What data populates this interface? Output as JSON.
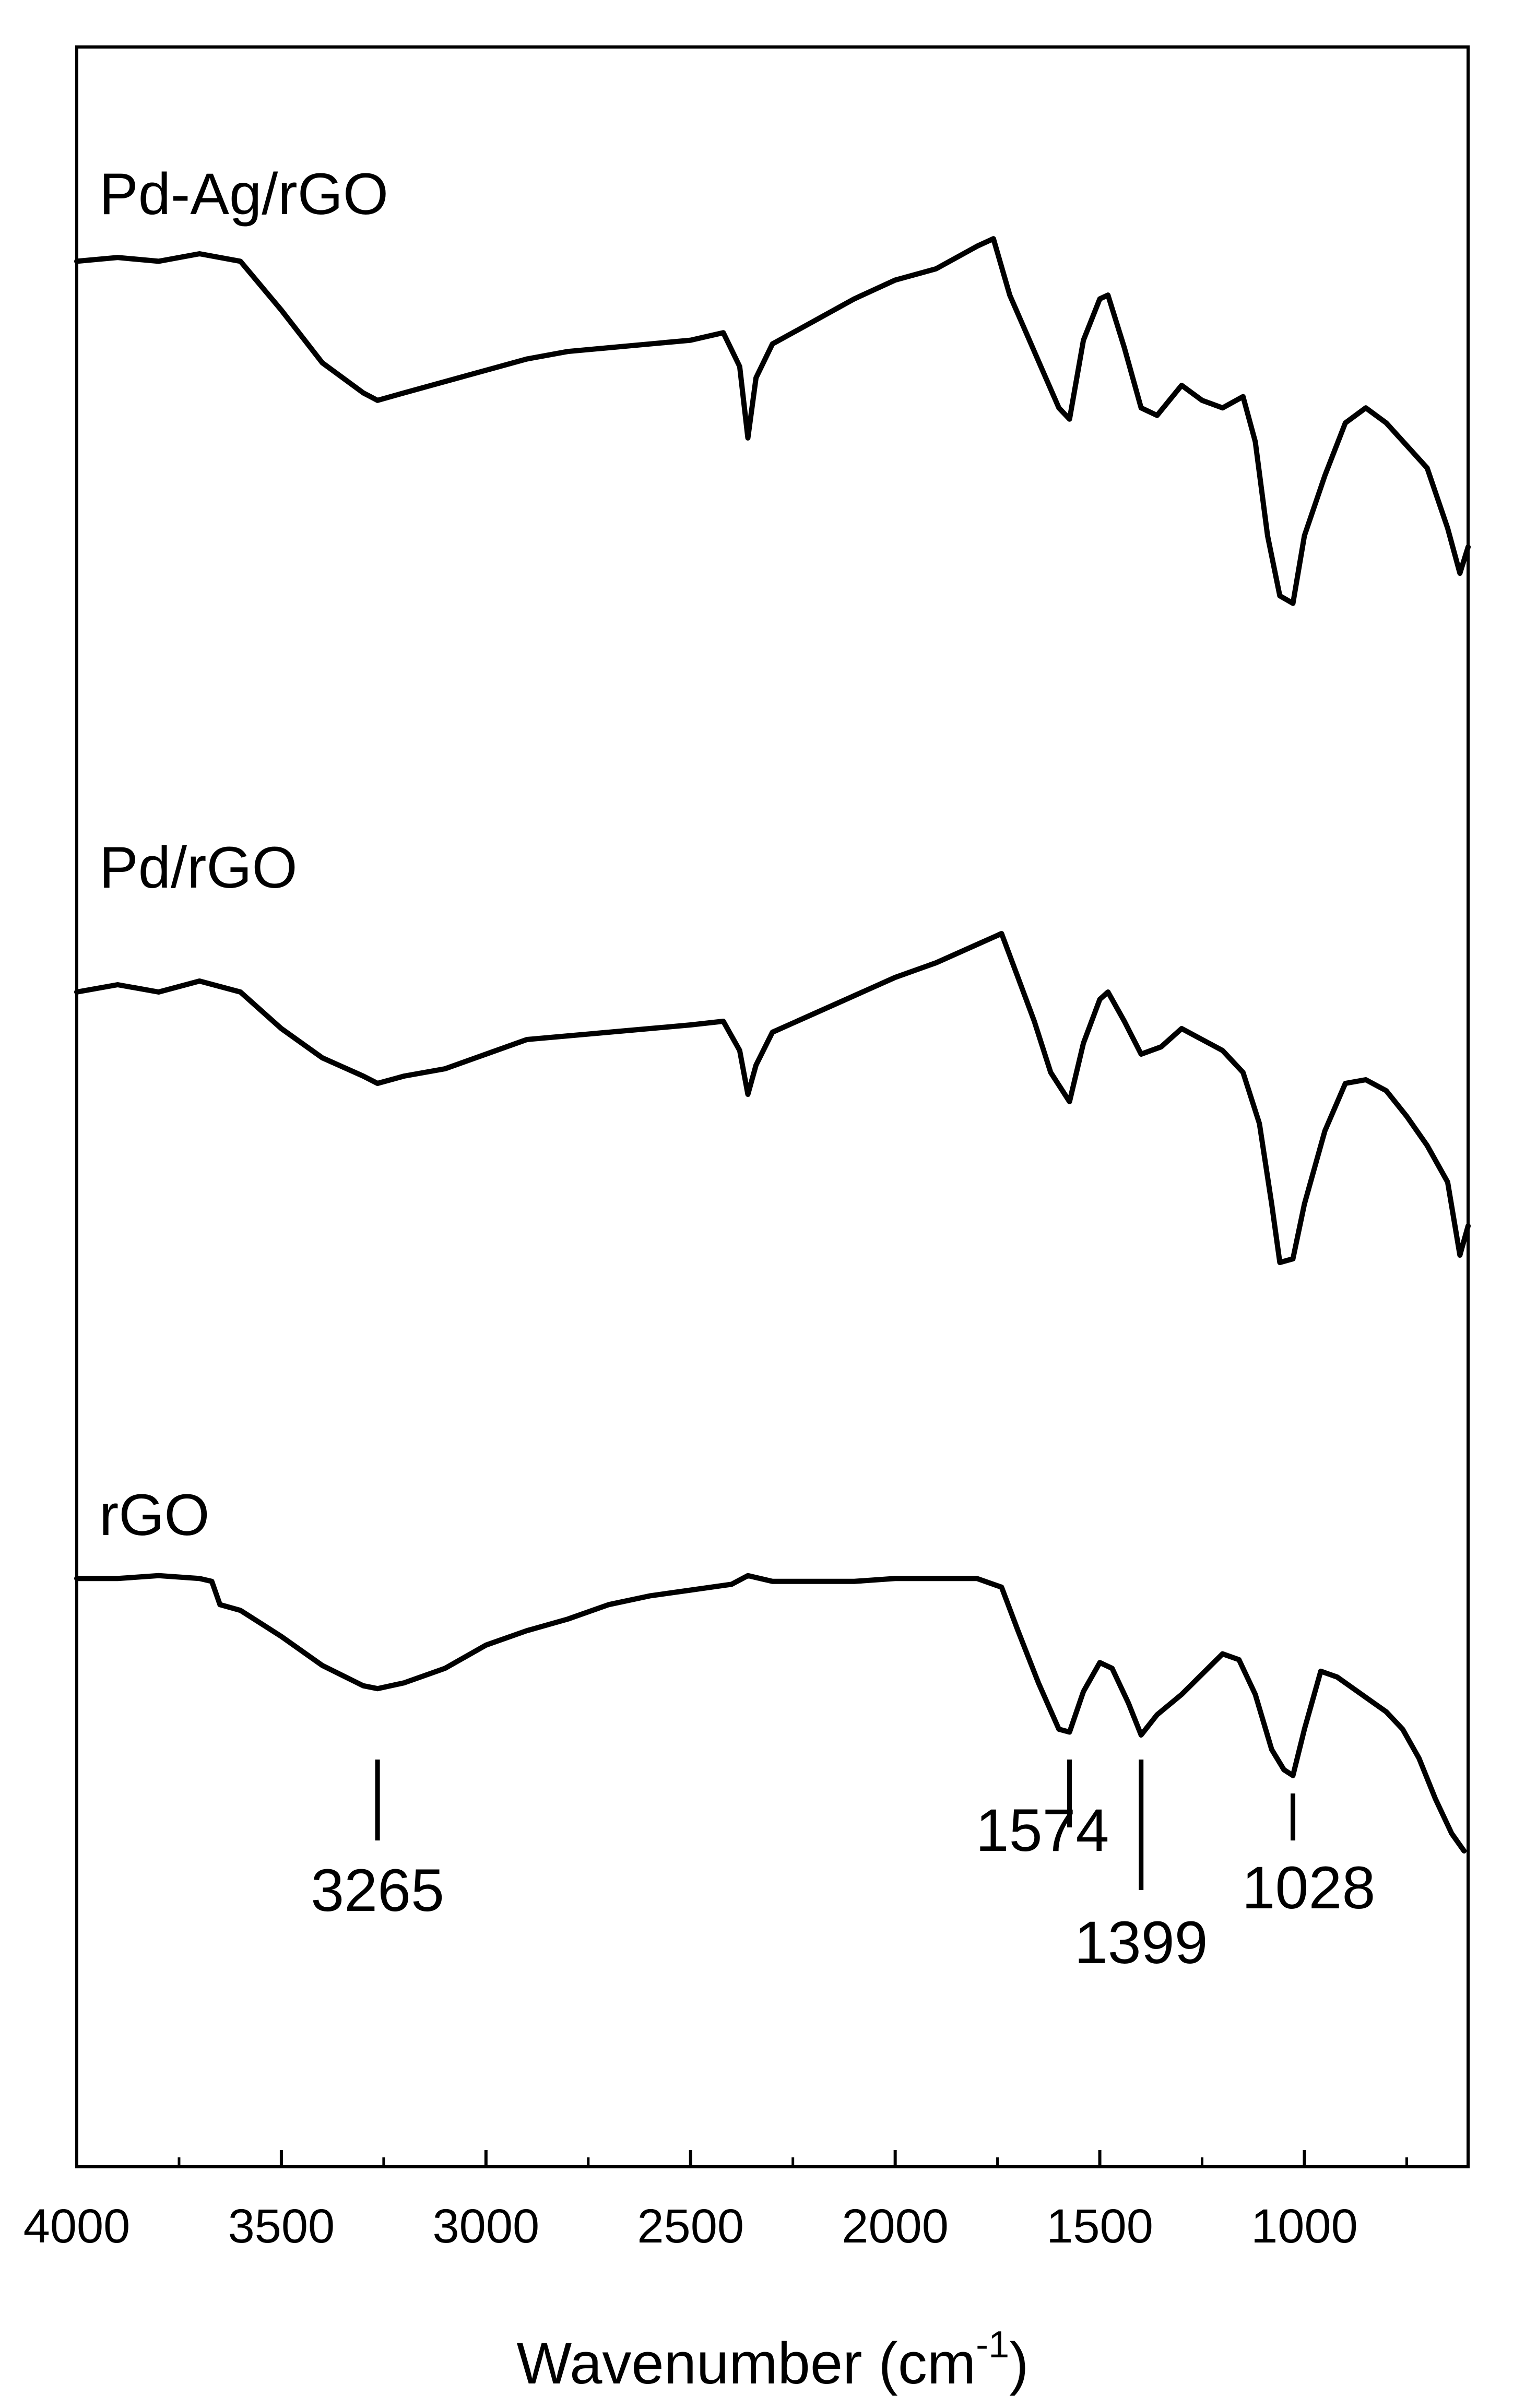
{
  "chart_data": {
    "type": "line",
    "xlabel": "Wavenumber (cm",
    "xlabel_sup": "-1",
    "xlabel_end": ")",
    "ylabel": "",
    "xlim": [
      4000,
      600
    ],
    "x_reversed": true,
    "y_axis_ticks_visible": false,
    "grid": false,
    "x_ticks": [
      4000,
      3500,
      3000,
      2500,
      2000,
      1500,
      1000
    ],
    "x_tick_labels": [
      "4000",
      "3500",
      "3000",
      "2500",
      "2000",
      "1500",
      "1000"
    ],
    "series": [
      {
        "name": "Pd-Ag/rGO",
        "points": [
          [
            4000,
            0.93
          ],
          [
            3900,
            0.94
          ],
          [
            3800,
            0.93
          ],
          [
            3700,
            0.95
          ],
          [
            3600,
            0.93
          ],
          [
            3500,
            0.8
          ],
          [
            3400,
            0.66
          ],
          [
            3300,
            0.58
          ],
          [
            3265,
            0.56
          ],
          [
            3200,
            0.58
          ],
          [
            3100,
            0.61
          ],
          [
            3000,
            0.64
          ],
          [
            2900,
            0.67
          ],
          [
            2800,
            0.69
          ],
          [
            2700,
            0.7
          ],
          [
            2600,
            0.71
          ],
          [
            2500,
            0.72
          ],
          [
            2420,
            0.74
          ],
          [
            2380,
            0.65
          ],
          [
            2360,
            0.46
          ],
          [
            2340,
            0.62
          ],
          [
            2300,
            0.71
          ],
          [
            2200,
            0.77
          ],
          [
            2100,
            0.83
          ],
          [
            2000,
            0.88
          ],
          [
            1900,
            0.91
          ],
          [
            1800,
            0.97
          ],
          [
            1760,
            0.99
          ],
          [
            1720,
            0.84
          ],
          [
            1680,
            0.74
          ],
          [
            1640,
            0.64
          ],
          [
            1600,
            0.54
          ],
          [
            1574,
            0.51
          ],
          [
            1540,
            0.72
          ],
          [
            1500,
            0.83
          ],
          [
            1480,
            0.84
          ],
          [
            1440,
            0.7
          ],
          [
            1399,
            0.54
          ],
          [
            1360,
            0.52
          ],
          [
            1300,
            0.6
          ],
          [
            1250,
            0.56
          ],
          [
            1200,
            0.54
          ],
          [
            1150,
            0.57
          ],
          [
            1120,
            0.45
          ],
          [
            1090,
            0.2
          ],
          [
            1060,
            0.04
          ],
          [
            1028,
            0.02
          ],
          [
            1000,
            0.2
          ],
          [
            950,
            0.36
          ],
          [
            900,
            0.5
          ],
          [
            850,
            0.54
          ],
          [
            800,
            0.5
          ],
          [
            750,
            0.44
          ],
          [
            700,
            0.38
          ],
          [
            650,
            0.22
          ],
          [
            620,
            0.1
          ],
          [
            600,
            0.17
          ]
        ],
        "label": "Pd-Ag/rGO"
      },
      {
        "name": "Pd/rGO",
        "points": [
          [
            4000,
            0.8
          ],
          [
            3900,
            0.82
          ],
          [
            3800,
            0.8
          ],
          [
            3700,
            0.83
          ],
          [
            3600,
            0.8
          ],
          [
            3500,
            0.7
          ],
          [
            3400,
            0.62
          ],
          [
            3300,
            0.57
          ],
          [
            3265,
            0.55
          ],
          [
            3200,
            0.57
          ],
          [
            3100,
            0.59
          ],
          [
            3000,
            0.63
          ],
          [
            2900,
            0.67
          ],
          [
            2800,
            0.68
          ],
          [
            2700,
            0.69
          ],
          [
            2600,
            0.7
          ],
          [
            2500,
            0.71
          ],
          [
            2420,
            0.72
          ],
          [
            2380,
            0.64
          ],
          [
            2360,
            0.52
          ],
          [
            2340,
            0.6
          ],
          [
            2300,
            0.69
          ],
          [
            2200,
            0.74
          ],
          [
            2100,
            0.79
          ],
          [
            2000,
            0.84
          ],
          [
            1900,
            0.88
          ],
          [
            1800,
            0.93
          ],
          [
            1740,
            0.96
          ],
          [
            1700,
            0.84
          ],
          [
            1660,
            0.72
          ],
          [
            1620,
            0.58
          ],
          [
            1574,
            0.5
          ],
          [
            1540,
            0.66
          ],
          [
            1500,
            0.78
          ],
          [
            1480,
            0.8
          ],
          [
            1440,
            0.72
          ],
          [
            1399,
            0.63
          ],
          [
            1350,
            0.65
          ],
          [
            1300,
            0.7
          ],
          [
            1250,
            0.67
          ],
          [
            1200,
            0.64
          ],
          [
            1150,
            0.58
          ],
          [
            1110,
            0.44
          ],
          [
            1080,
            0.22
          ],
          [
            1060,
            0.06
          ],
          [
            1028,
            0.07
          ],
          [
            1000,
            0.22
          ],
          [
            950,
            0.42
          ],
          [
            900,
            0.55
          ],
          [
            850,
            0.56
          ],
          [
            800,
            0.53
          ],
          [
            750,
            0.46
          ],
          [
            700,
            0.38
          ],
          [
            650,
            0.28
          ],
          [
            620,
            0.08
          ],
          [
            600,
            0.16
          ]
        ],
        "label": "Pd/rGO"
      },
      {
        "name": "rGO",
        "points": [
          [
            4000,
            0.94
          ],
          [
            3900,
            0.94
          ],
          [
            3800,
            0.95
          ],
          [
            3700,
            0.94
          ],
          [
            3670,
            0.93
          ],
          [
            3650,
            0.85
          ],
          [
            3600,
            0.83
          ],
          [
            3500,
            0.74
          ],
          [
            3400,
            0.64
          ],
          [
            3300,
            0.57
          ],
          [
            3265,
            0.56
          ],
          [
            3200,
            0.58
          ],
          [
            3100,
            0.63
          ],
          [
            3000,
            0.71
          ],
          [
            2900,
            0.76
          ],
          [
            2800,
            0.8
          ],
          [
            2700,
            0.85
          ],
          [
            2600,
            0.88
          ],
          [
            2500,
            0.9
          ],
          [
            2400,
            0.92
          ],
          [
            2360,
            0.95
          ],
          [
            2300,
            0.93
          ],
          [
            2200,
            0.93
          ],
          [
            2100,
            0.93
          ],
          [
            2000,
            0.94
          ],
          [
            1900,
            0.94
          ],
          [
            1800,
            0.94
          ],
          [
            1740,
            0.91
          ],
          [
            1700,
            0.76
          ],
          [
            1650,
            0.58
          ],
          [
            1600,
            0.42
          ],
          [
            1574,
            0.41
          ],
          [
            1540,
            0.55
          ],
          [
            1500,
            0.65
          ],
          [
            1470,
            0.63
          ],
          [
            1430,
            0.51
          ],
          [
            1399,
            0.4
          ],
          [
            1360,
            0.47
          ],
          [
            1300,
            0.54
          ],
          [
            1250,
            0.61
          ],
          [
            1200,
            0.68
          ],
          [
            1160,
            0.66
          ],
          [
            1120,
            0.54
          ],
          [
            1080,
            0.35
          ],
          [
            1050,
            0.28
          ],
          [
            1028,
            0.26
          ],
          [
            1000,
            0.42
          ],
          [
            960,
            0.62
          ],
          [
            920,
            0.6
          ],
          [
            880,
            0.56
          ],
          [
            840,
            0.52
          ],
          [
            800,
            0.48
          ],
          [
            760,
            0.42
          ],
          [
            720,
            0.32
          ],
          [
            680,
            0.18
          ],
          [
            640,
            0.06
          ],
          [
            610,
            0.0
          ]
        ],
        "label": "rGO"
      }
    ],
    "annotations": [
      {
        "text": "3265",
        "x": 3265,
        "series": "rGO"
      },
      {
        "text": "1574",
        "x": 1574,
        "series": "rGO"
      },
      {
        "text": "1399",
        "x": 1399,
        "series": "rGO"
      },
      {
        "text": "1028",
        "x": 1028,
        "series": "rGO"
      }
    ]
  }
}
